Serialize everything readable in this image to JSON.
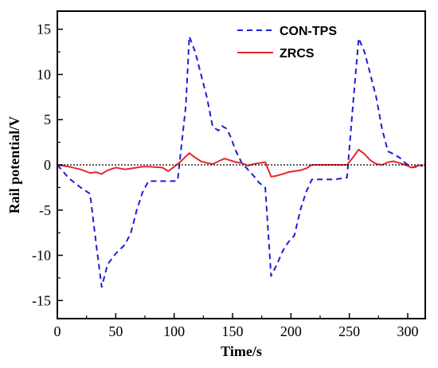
{
  "chart_data": {
    "type": "line",
    "title": "",
    "xlabel": "Time/s",
    "ylabel": "Rail potential/V",
    "xlim": [
      0,
      315
    ],
    "ylim": [
      -17,
      17
    ],
    "x_ticks": [
      0,
      50,
      100,
      150,
      200,
      250,
      300
    ],
    "y_ticks": [
      15,
      10,
      5,
      0,
      -5,
      -10,
      -15
    ],
    "x_tick_labels": [
      "0",
      "50",
      "100",
      "150",
      "200",
      "250",
      "300"
    ],
    "y_tick_labels": [
      "15",
      "10",
      "5",
      "0",
      "-5",
      "-10",
      "-15"
    ],
    "zero_reference_line": true,
    "grid": false,
    "legend_position": "top-right",
    "series": [
      {
        "name": "CON-TPS",
        "color": "#1f1fd0",
        "dash": "dashed",
        "x": [
          0,
          10,
          20,
          28,
          33,
          38,
          43,
          50,
          58,
          63,
          68,
          73,
          78,
          90,
          100,
          103,
          110,
          113,
          118,
          123,
          128,
          133,
          138,
          141,
          145,
          148,
          153,
          158,
          163,
          168,
          173,
          178,
          183,
          188,
          193,
          198,
          203,
          208,
          213,
          218,
          223,
          228,
          233,
          238,
          243,
          248,
          253,
          258,
          263,
          268,
          273,
          278,
          283,
          288,
          293,
          298,
          303,
          308,
          313
        ],
        "y": [
          0,
          -1.5,
          -2.5,
          -3.2,
          -8.5,
          -13.5,
          -11.0,
          -9.8,
          -8.8,
          -7.5,
          -5.0,
          -3.0,
          -1.8,
          -1.8,
          -1.8,
          -1.7,
          6.5,
          14.2,
          12.5,
          10.0,
          7.5,
          4.2,
          3.8,
          4.3,
          4.0,
          3.2,
          1.5,
          0.2,
          -0.5,
          -1.2,
          -2.0,
          -2.5,
          -12.3,
          -11.0,
          -9.5,
          -8.5,
          -7.8,
          -5.0,
          -3.0,
          -1.6,
          -1.6,
          -1.6,
          -1.6,
          -1.6,
          -1.5,
          -1.4,
          6.5,
          14.0,
          12.5,
          10.0,
          7.5,
          4.0,
          1.5,
          1.2,
          0.8,
          0.2,
          -0.3,
          -0.2,
          -0.1
        ]
      },
      {
        "name": "ZRCS",
        "color": "#e8262a",
        "dash": "solid",
        "x": [
          0,
          10,
          20,
          28,
          33,
          38,
          43,
          50,
          58,
          63,
          68,
          73,
          78,
          90,
          95,
          100,
          105,
          113,
          118,
          123,
          128,
          133,
          138,
          143,
          148,
          153,
          158,
          163,
          168,
          173,
          178,
          183,
          188,
          193,
          198,
          203,
          208,
          213,
          218,
          228,
          238,
          248,
          253,
          258,
          263,
          268,
          273,
          278,
          283,
          288,
          293,
          298,
          303,
          308,
          313
        ],
        "y": [
          0,
          -0.2,
          -0.5,
          -0.9,
          -0.8,
          -1.0,
          -0.6,
          -0.3,
          -0.5,
          -0.4,
          -0.3,
          -0.2,
          -0.2,
          -0.3,
          -0.7,
          -0.2,
          0.3,
          1.3,
          0.8,
          0.4,
          0.2,
          0.1,
          0.4,
          0.7,
          0.5,
          0.3,
          0.2,
          -0.1,
          0.1,
          0.2,
          0.3,
          -1.3,
          -1.2,
          -1.0,
          -0.8,
          -0.7,
          -0.6,
          -0.4,
          0.0,
          0.0,
          0.0,
          0.0,
          0.8,
          1.7,
          1.2,
          0.5,
          0.1,
          0.0,
          0.3,
          0.4,
          0.2,
          0.0,
          -0.3,
          -0.1,
          0.0
        ]
      }
    ]
  }
}
